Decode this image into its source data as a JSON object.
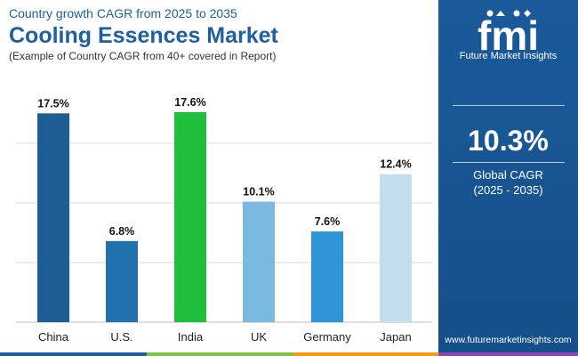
{
  "header": {
    "subtitle": "Country growth CAGR from 2025 to 2035",
    "title": "Cooling Essences Market",
    "note": "(Example of Country CAGR from 40+ covered in Report)"
  },
  "chart_data": {
    "type": "bar",
    "title": "Cooling Essences Market",
    "categories": [
      "China",
      "U.S.",
      "India",
      "UK",
      "Germany",
      "Japan"
    ],
    "values": [
      17.5,
      6.8,
      17.6,
      10.1,
      7.6,
      12.4
    ],
    "value_labels": [
      "17.5%",
      "6.8%",
      "17.6%",
      "10.1%",
      "7.6%",
      "12.4%"
    ],
    "colors": [
      "#1c5e94",
      "#2071ad",
      "#1fbf3c",
      "#7ab9e0",
      "#2f94d6",
      "#c3dfee"
    ],
    "unit": "%",
    "xlabel": "",
    "ylabel": "",
    "ylim": [
      0,
      17.6
    ],
    "gridlines": [
      5,
      10,
      15
    ],
    "grid": true
  },
  "panel": {
    "logo_letters": "fmi",
    "logo_text": "Future Market Insights",
    "cagr_value": "10.3%",
    "cagr_label": "Global CAGR",
    "cagr_period": "(2025 - 2035)",
    "website": "www.futuremarketinsights.com"
  },
  "colors": {
    "brand_blue": "#1e5f9e",
    "panel_blue": "#1a5a9a",
    "bar_green": "#1fbf3c",
    "bottom_bar": [
      "#1e5f9e",
      "#7cc242",
      "#f39c12",
      "#8e44ad"
    ]
  }
}
